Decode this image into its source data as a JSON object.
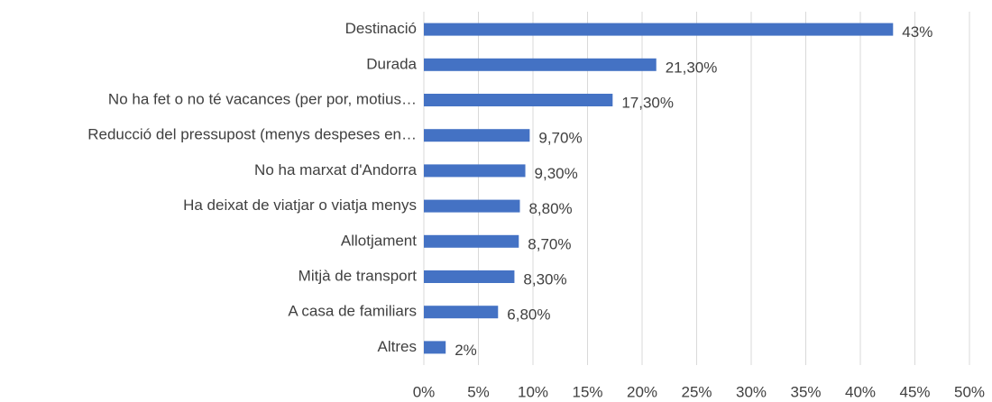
{
  "chart_data": {
    "type": "bar",
    "orientation": "horizontal",
    "categories": [
      "Destinació",
      "Durada",
      "No ha fet o no té vacances (per por, motius…",
      "Reducció del pressupost (menys despeses en…",
      "No ha marxat d'Andorra",
      "Ha deixat de viatjar o viatja menys",
      "Allotjament",
      "Mitjà de transport",
      "A casa de familiars",
      "Altres"
    ],
    "values": [
      43,
      21.3,
      17.3,
      9.7,
      9.3,
      8.8,
      8.7,
      8.3,
      6.8,
      2
    ],
    "value_labels": [
      "43%",
      "21,30%",
      "17,30%",
      "9,70%",
      "9,30%",
      "8,80%",
      "8,70%",
      "8,30%",
      "6,80%",
      "2%"
    ],
    "color": "#4472c4",
    "xlim": [
      0,
      50
    ],
    "xticks": [
      {
        "value": 0,
        "label": "0%"
      },
      {
        "value": 5,
        "label": "5%"
      },
      {
        "value": 10,
        "label": "10%"
      },
      {
        "value": 15,
        "label": "15%"
      },
      {
        "value": 20,
        "label": "20%"
      },
      {
        "value": 25,
        "label": "25%"
      },
      {
        "value": 30,
        "label": "30%"
      },
      {
        "value": 35,
        "label": "35%"
      },
      {
        "value": 40,
        "label": "40%"
      },
      {
        "value": 45,
        "label": "45%"
      },
      {
        "value": 50,
        "label": "50%"
      }
    ],
    "grid": true
  }
}
